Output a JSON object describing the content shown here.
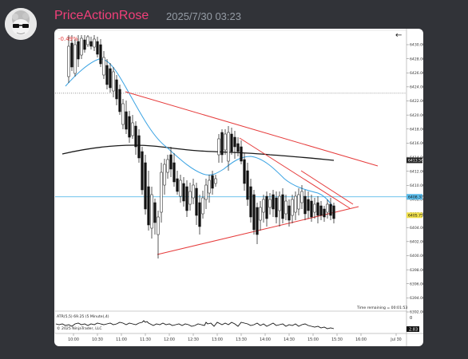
{
  "message": {
    "username": "PriceActionRose",
    "timestamp": "2025/7/30 03:23"
  },
  "chart_data": {
    "type": "candlestick",
    "pct_label": "-0.49%",
    "y_ticks": [
      "6430.00",
      "6428.00",
      "6426.00",
      "6424.00",
      "6422.00",
      "6420.00",
      "6418.00",
      "6416.00",
      "6414.00",
      "6412.00",
      "6410.00",
      "6408.00",
      "6406.00",
      "6404.00",
      "6402.00",
      "6400.00",
      "6398.00",
      "6396.00",
      "6394.00",
      "6392.00"
    ],
    "x_ticks": [
      "10:00",
      "10:30",
      "11:00",
      "11:30",
      "12:00",
      "12:30",
      "13:00",
      "13:30",
      "14:00",
      "14:30",
      "15:00",
      "15:30",
      "16:00",
      "Jul 30"
    ],
    "price_labels": [
      {
        "text": "6413.56",
        "value": 6413.56,
        "color": "#222222"
      },
      {
        "text": "6408.37",
        "value": 6408.37,
        "color": "#5bbcea"
      },
      {
        "text": "6405.75",
        "value": 6405.75,
        "color": "#f2e14c"
      }
    ],
    "reference_lines": [
      {
        "value": 6423.1,
        "style": "dotted",
        "color": "#888888"
      },
      {
        "value": 6408.37,
        "style": "solid",
        "color": "#5bbcea"
      }
    ],
    "time_remaining": "Time remaining = 00:01:53",
    "indicator_label": "ATR(5,5) 69.25 (5 Minute),4)",
    "copyright": "© 2025 NinjaTrader, LLC",
    "indicator_ticks": [
      "0",
      "2.83"
    ],
    "back_arrow": "←"
  }
}
